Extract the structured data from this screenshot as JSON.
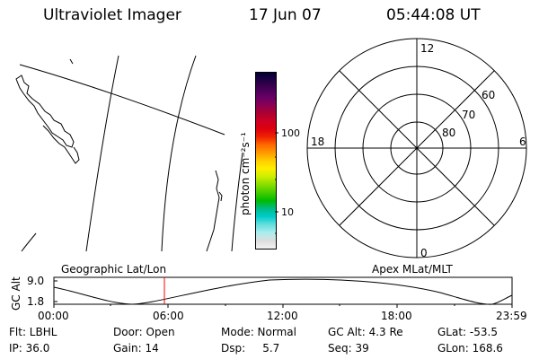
{
  "header": {
    "instrument": "Ultraviolet Imager",
    "date": "17 Jun 07",
    "time": "05:44:08 UT"
  },
  "colorbar": {
    "unit_label": "photon cm⁻²s⁻¹",
    "tick_labels": [
      "100",
      "10"
    ],
    "colors": [
      "#000033",
      "#220044",
      "#440055",
      "#660066",
      "#880055",
      "#aa0033",
      "#cc0022",
      "#dd0011",
      "#ee2200",
      "#ff6600",
      "#ff9900",
      "#ffcc00",
      "#ffee00",
      "#ccee00",
      "#88dd00",
      "#44cc00",
      "#00bb00",
      "#00bb88",
      "#00cccc",
      "#66dddd",
      "#aaeeee",
      "#dddddd",
      "#f2f2f2"
    ]
  },
  "polar_plot": {
    "mlt_labels": [
      "12",
      "18",
      "6",
      "0"
    ],
    "mlat_labels": [
      "60",
      "70",
      "80"
    ]
  },
  "orbit_panel": {
    "left_title": "Geographic Lat/Lon",
    "right_title": "Apex MLat/MLT",
    "ylabel": "GC Alt",
    "y_ticks": [
      "9.0",
      "1.8"
    ],
    "x_ticks": [
      "00:00",
      "06:00",
      "12:00",
      "18:00",
      "23:59"
    ],
    "current_marker_color": "#ff0000"
  },
  "status": {
    "row1": {
      "filter": "Flt: LBHL",
      "door": "Door: Open",
      "mode": "Mode: Normal",
      "gc_alt": "GC Alt: 4.3 Re",
      "glat": "GLat: -53.5"
    },
    "row2": {
      "ip": "IP: 36.0",
      "gain": "Gain: 14",
      "dsp": "Dsp:     5.7",
      "seq": "Seq: 39",
      "glon": "GLon: 168.6"
    }
  }
}
